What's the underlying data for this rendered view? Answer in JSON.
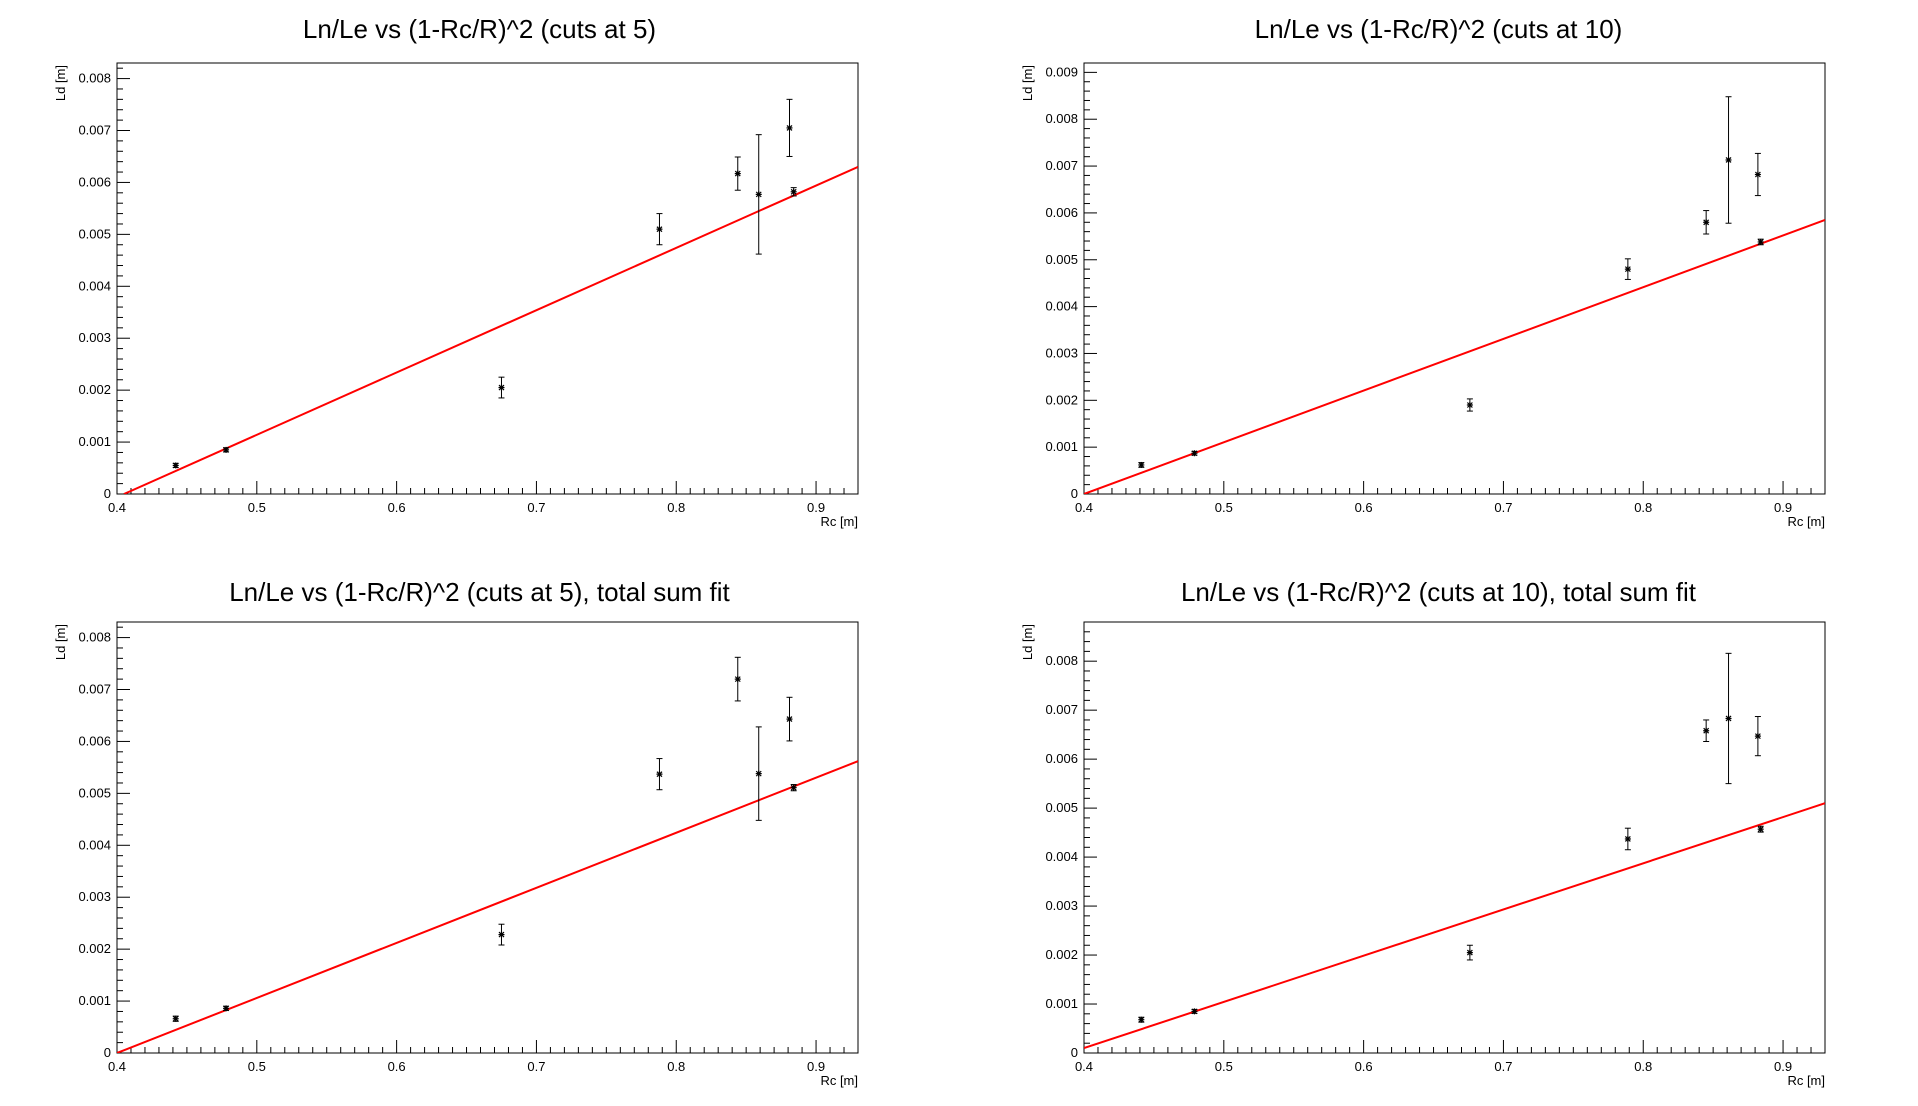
{
  "chart_data": [
    {
      "type": "scatter",
      "title": "Ln/Le vs (1-Rc/R)^2 (cuts at 5)",
      "xlabel": "Rc [m]",
      "ylabel": "Ld [m]",
      "xlim": [
        0.4,
        0.93
      ],
      "ylim": [
        0,
        0.0083
      ],
      "xticks": [
        "0.4",
        "0.5",
        "0.6",
        "0.7",
        "0.8",
        "0.9"
      ],
      "yticks": [
        "0",
        "0.001",
        "0.002",
        "0.003",
        "0.004",
        "0.005",
        "0.006",
        "0.007",
        "0.008"
      ],
      "points": [
        {
          "x": 0.442,
          "y": 0.00055,
          "err": 4e-05
        },
        {
          "x": 0.478,
          "y": 0.00085,
          "err": 4e-05
        },
        {
          "x": 0.675,
          "y": 0.00205,
          "err": 0.0002
        },
        {
          "x": 0.788,
          "y": 0.0051,
          "err": 0.0003
        },
        {
          "x": 0.844,
          "y": 0.00617,
          "err": 0.00032
        },
        {
          "x": 0.859,
          "y": 0.00577,
          "err": 0.00115
        },
        {
          "x": 0.881,
          "y": 0.00705,
          "err": 0.00055
        },
        {
          "x": 0.884,
          "y": 0.00582,
          "err": 8e-05
        }
      ],
      "fit": {
        "x": [
          0.405,
          0.93
        ],
        "y": [
          0.0,
          0.0063
        ]
      }
    },
    {
      "type": "scatter",
      "title": "Ln/Le vs (1-Rc/R)^2 (cuts at 10)",
      "xlabel": "Rc [m]",
      "ylabel": "Ld [m]",
      "xlim": [
        0.4,
        0.93
      ],
      "ylim": [
        0,
        0.0092
      ],
      "xticks": [
        "0.4",
        "0.5",
        "0.6",
        "0.7",
        "0.8",
        "0.9"
      ],
      "yticks": [
        "0",
        "0.001",
        "0.002",
        "0.003",
        "0.004",
        "0.005",
        "0.006",
        "0.007",
        "0.008",
        "0.009"
      ],
      "points": [
        {
          "x": 0.441,
          "y": 0.00062,
          "err": 5e-05
        },
        {
          "x": 0.479,
          "y": 0.00087,
          "err": 4e-05
        },
        {
          "x": 0.676,
          "y": 0.0019,
          "err": 0.00013
        },
        {
          "x": 0.789,
          "y": 0.0048,
          "err": 0.00022
        },
        {
          "x": 0.845,
          "y": 0.0058,
          "err": 0.00025
        },
        {
          "x": 0.861,
          "y": 0.00713,
          "err": 0.00135
        },
        {
          "x": 0.882,
          "y": 0.00682,
          "err": 0.00045
        },
        {
          "x": 0.884,
          "y": 0.00538,
          "err": 6e-05
        }
      ],
      "fit": {
        "x": [
          0.4,
          0.93
        ],
        "y": [
          0.0,
          0.00585
        ]
      }
    },
    {
      "type": "scatter",
      "title": "Ln/Le vs (1-Rc/R)^2 (cuts at 5), total sum fit",
      "xlabel": "Rc [m]",
      "ylabel": "Ld [m]",
      "xlim": [
        0.4,
        0.93
      ],
      "ylim": [
        0,
        0.0083
      ],
      "xticks": [
        "0.4",
        "0.5",
        "0.6",
        "0.7",
        "0.8",
        "0.9"
      ],
      "yticks": [
        "0",
        "0.001",
        "0.002",
        "0.003",
        "0.004",
        "0.005",
        "0.006",
        "0.007",
        "0.008"
      ],
      "points": [
        {
          "x": 0.442,
          "y": 0.00066,
          "err": 5e-05
        },
        {
          "x": 0.478,
          "y": 0.00086,
          "err": 4e-05
        },
        {
          "x": 0.675,
          "y": 0.00228,
          "err": 0.0002
        },
        {
          "x": 0.788,
          "y": 0.00537,
          "err": 0.0003
        },
        {
          "x": 0.844,
          "y": 0.0072,
          "err": 0.00042
        },
        {
          "x": 0.859,
          "y": 0.00538,
          "err": 0.0009
        },
        {
          "x": 0.881,
          "y": 0.00643,
          "err": 0.00042
        },
        {
          "x": 0.884,
          "y": 0.00511,
          "err": 6e-05
        }
      ],
      "fit": {
        "x": [
          0.4,
          0.93
        ],
        "y": [
          0.0,
          0.00562
        ]
      }
    },
    {
      "type": "scatter",
      "title": "Ln/Le vs (1-Rc/R)^2 (cuts at 10), total sum fit",
      "xlabel": "Rc [m]",
      "ylabel": "Ld [m]",
      "xlim": [
        0.4,
        0.93
      ],
      "ylim": [
        0,
        0.0088
      ],
      "xticks": [
        "0.4",
        "0.5",
        "0.6",
        "0.7",
        "0.8",
        "0.9"
      ],
      "yticks": [
        "0",
        "0.001",
        "0.002",
        "0.003",
        "0.004",
        "0.005",
        "0.006",
        "0.007",
        "0.008"
      ],
      "points": [
        {
          "x": 0.441,
          "y": 0.00068,
          "err": 5e-05
        },
        {
          "x": 0.479,
          "y": 0.00085,
          "err": 4e-05
        },
        {
          "x": 0.676,
          "y": 0.00205,
          "err": 0.00015
        },
        {
          "x": 0.789,
          "y": 0.00437,
          "err": 0.00022
        },
        {
          "x": 0.845,
          "y": 0.00658,
          "err": 0.00022
        },
        {
          "x": 0.861,
          "y": 0.00683,
          "err": 0.00133
        },
        {
          "x": 0.882,
          "y": 0.00647,
          "err": 0.0004
        },
        {
          "x": 0.884,
          "y": 0.00457,
          "err": 6e-05
        }
      ],
      "fit": {
        "x": [
          0.4,
          0.93
        ],
        "y": [
          0.0001,
          0.0051
        ]
      }
    }
  ],
  "colors": {
    "fit_line": "#ff0000",
    "points": "#000000",
    "axes": "#000000"
  }
}
